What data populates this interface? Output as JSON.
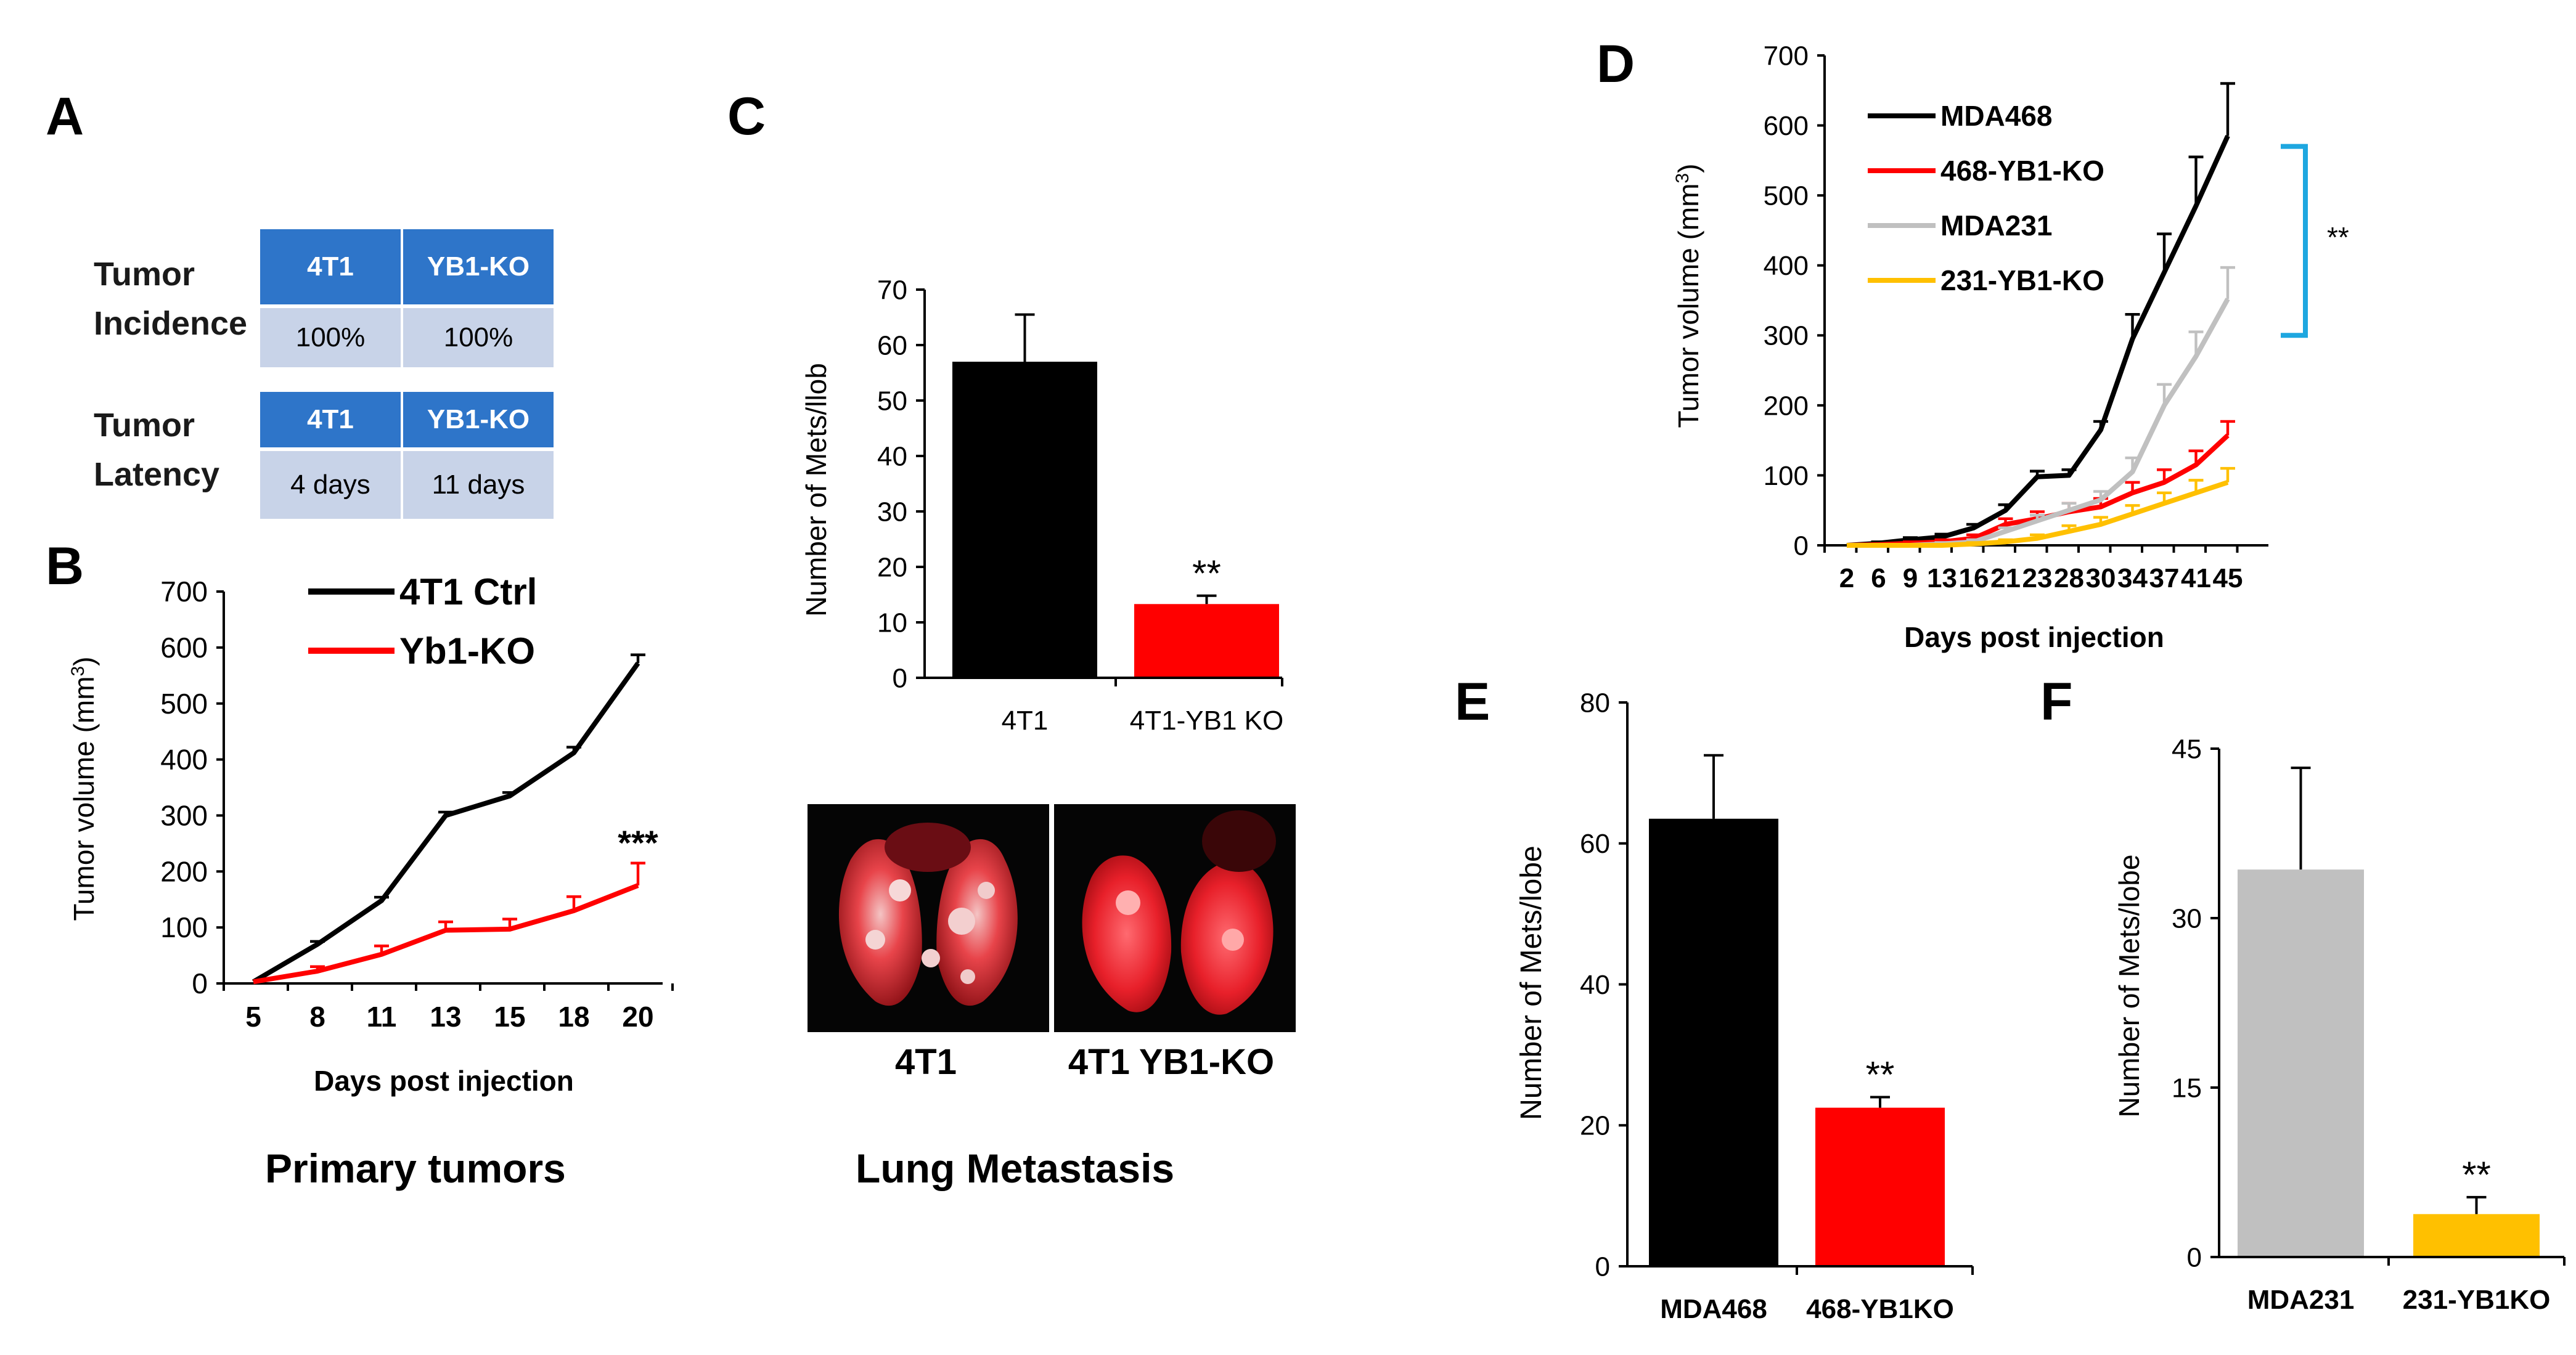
{
  "panels": {
    "A": "A",
    "B": "B",
    "C": "C",
    "D": "D",
    "E": "E",
    "F": "F"
  },
  "table_A": {
    "incidence": {
      "label_line1": "Tumor",
      "label_line2": "Incidence",
      "headers": [
        "4T1",
        "YB1-KO"
      ],
      "values": [
        "100%",
        "100%"
      ]
    },
    "latency": {
      "label_line1": "Tumor",
      "label_line2": "Latency",
      "headers": [
        "4T1",
        "YB1-KO"
      ],
      "values": [
        "4 days",
        "11 days"
      ]
    }
  },
  "captions": {
    "primary": "Primary tumors",
    "lung": "Lung Metastasis"
  },
  "lung_images": {
    "left_label": "4T1",
    "right_label": "4T1 YB1-KO"
  },
  "colors": {
    "black": "#000000",
    "red": "#ff0000",
    "gray": "#c0c0c0",
    "yellow": "#ffc000",
    "cyan": "#1ea7e0",
    "table_head": "#2e75c9",
    "table_body": "#c8d3e8"
  },
  "chart_data": [
    {
      "id": "B",
      "type": "line",
      "title": "",
      "xlabel": "Days post injection",
      "ylabel": "Tumor volume (mm",
      "ylabel_sup": "3",
      "ylabel_end": ")",
      "x": [
        5,
        8,
        11,
        13,
        15,
        18,
        20
      ],
      "xticks": [
        "5",
        "8",
        "11",
        "13",
        "15",
        "18",
        "20"
      ],
      "yticks": [
        0,
        100,
        200,
        300,
        400,
        500,
        600,
        700
      ],
      "ylim": [
        0,
        700
      ],
      "series": [
        {
          "name": "4T1 Ctrl",
          "color": "#000000",
          "values": [
            3,
            70,
            148,
            300,
            335,
            412,
            572
          ],
          "errors": [
            0,
            5,
            6,
            6,
            6,
            10,
            15
          ]
        },
        {
          "name": "Yb1-KO",
          "color": "#ff0000",
          "values": [
            3,
            22,
            52,
            95,
            97,
            130,
            175
          ],
          "errors": [
            0,
            8,
            15,
            15,
            18,
            25,
            40
          ]
        }
      ],
      "annotation": "***"
    },
    {
      "id": "C",
      "type": "bar",
      "categories": [
        "4T1",
        "4T1-YB1 KO"
      ],
      "values": [
        57,
        13.3
      ],
      "errors": [
        8.5,
        1.5
      ],
      "colors": [
        "#000000",
        "#ff0000"
      ],
      "ylabel": "Number of Mets/llob",
      "yticks": [
        0,
        10,
        20,
        30,
        40,
        50,
        60,
        70
      ],
      "ylim": [
        0,
        70
      ],
      "annotation": "**"
    },
    {
      "id": "D",
      "type": "line",
      "xlabel": "Days post injection",
      "ylabel": "Tumor volume (mm",
      "ylabel_sup": "3",
      "ylabel_end": ")",
      "xticks": [
        "2",
        "6",
        "9",
        "13",
        "16",
        "21",
        "23",
        "28",
        "30",
        "34",
        "37",
        "41",
        "45"
      ],
      "yticks": [
        0,
        100,
        200,
        300,
        400,
        500,
        600,
        700
      ],
      "ylim": [
        0,
        700
      ],
      "series": [
        {
          "name": "MDA468",
          "color": "#000000",
          "values": [
            0,
            3,
            8,
            12,
            25,
            50,
            98,
            100,
            165,
            295,
            390,
            485,
            585
          ],
          "errors": [
            0,
            2,
            3,
            4,
            5,
            8,
            8,
            8,
            12,
            35,
            55,
            70,
            75
          ]
        },
        {
          "name": "468-YB1-KO",
          "color": "#ff0000",
          "values": [
            0,
            1,
            3,
            5,
            10,
            30,
            38,
            48,
            55,
            75,
            90,
            115,
            157
          ],
          "errors": [
            0,
            1,
            2,
            3,
            5,
            8,
            10,
            12,
            12,
            15,
            18,
            20,
            20
          ]
        },
        {
          "name": "MDA231",
          "color": "#c0c0c0",
          "values": [
            0,
            0,
            0,
            2,
            5,
            20,
            35,
            50,
            65,
            105,
            200,
            270,
            352
          ],
          "errors": [
            0,
            0,
            0,
            2,
            3,
            5,
            8,
            10,
            12,
            20,
            30,
            35,
            45
          ]
        },
        {
          "name": "231-YB1-KO",
          "color": "#ffc000",
          "values": [
            0,
            0,
            0,
            0,
            2,
            5,
            10,
            20,
            30,
            45,
            60,
            75,
            90
          ],
          "errors": [
            0,
            0,
            0,
            0,
            2,
            3,
            5,
            8,
            10,
            12,
            15,
            18,
            20
          ]
        }
      ],
      "annotation": "**"
    },
    {
      "id": "E",
      "type": "bar",
      "categories": [
        "MDA468",
        "468-YB1KO"
      ],
      "values": [
        63.5,
        22.5
      ],
      "errors": [
        9,
        1.5
      ],
      "colors": [
        "#000000",
        "#ff0000"
      ],
      "ylabel": "Number of Mets/lobe",
      "yticks": [
        0,
        20,
        40,
        60,
        80
      ],
      "ylim": [
        0,
        80
      ],
      "annotation": "**"
    },
    {
      "id": "F",
      "type": "bar",
      "categories": [
        "MDA231",
        "231-YB1KO"
      ],
      "values": [
        34.3,
        3.8
      ],
      "errors": [
        9,
        1.5
      ],
      "colors": [
        "#c0c0c0",
        "#ffc000"
      ],
      "ylabel": "Number of Mets/lobe",
      "yticks": [
        0,
        15,
        30,
        45
      ],
      "ylim": [
        0,
        45
      ],
      "annotation": "**"
    }
  ]
}
